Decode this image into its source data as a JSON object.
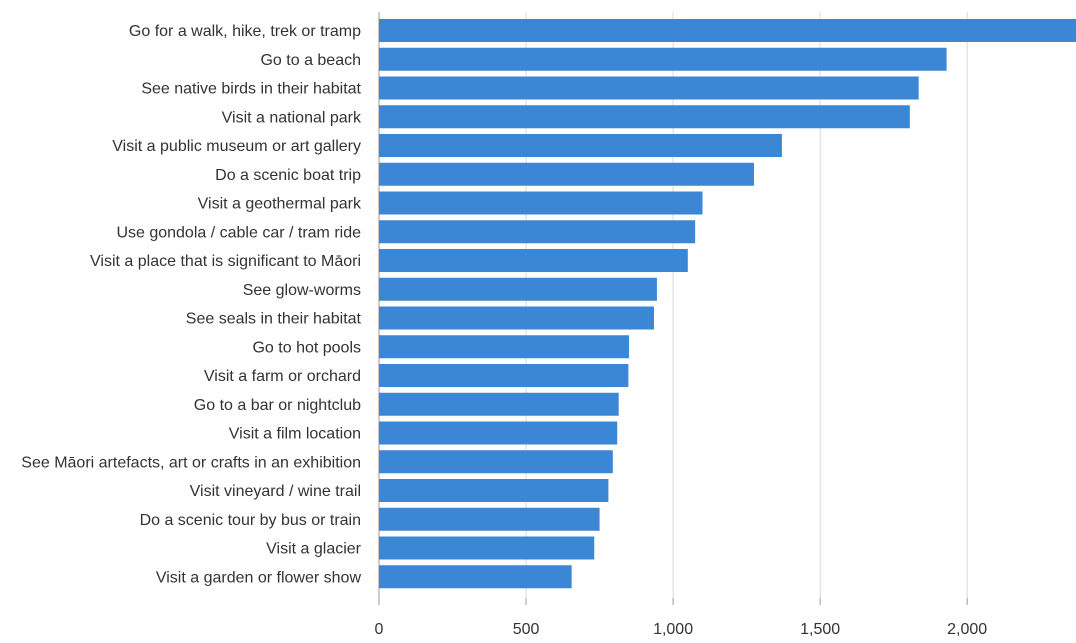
{
  "chart_data": {
    "type": "bar",
    "orientation": "horizontal",
    "categories": [
      "Go for a walk, hike, trek or tramp",
      "Go to a beach",
      "See native birds in their habitat",
      "Visit a national park",
      "Visit a public museum or art gallery",
      "Do a scenic boat trip",
      "Visit a geothermal park",
      "Use gondola / cable car / tram ride",
      "Visit a place that is significant to Māori",
      "See glow-worms",
      "See seals in their habitat",
      "Go to hot pools",
      "Visit a farm or orchard",
      "Go to a bar or nightclub",
      "Visit a film location",
      "See Māori artefacts, art or crafts in an exhibition",
      "Visit vineyard / wine trail",
      "Do a scenic tour by bus or train",
      "Visit a glacier",
      "Visit a garden or flower show"
    ],
    "values": [
      2370,
      1930,
      1835,
      1805,
      1370,
      1275,
      1100,
      1075,
      1050,
      945,
      935,
      850,
      848,
      815,
      810,
      795,
      780,
      750,
      732,
      655
    ],
    "xlim": [
      0,
      2370
    ],
    "xticks": [
      {
        "value": 0,
        "label": "0"
      },
      {
        "value": 500,
        "label": "500"
      },
      {
        "value": 1000,
        "label": "1,000"
      },
      {
        "value": 1500,
        "label": "1,500"
      },
      {
        "value": 2000,
        "label": "2,000"
      }
    ],
    "title": "",
    "xlabel": "",
    "ylabel": "",
    "grid": true,
    "bar_color": "#3b87d5",
    "grid_color": "#d9d9d9",
    "axis_color": "#999999"
  }
}
